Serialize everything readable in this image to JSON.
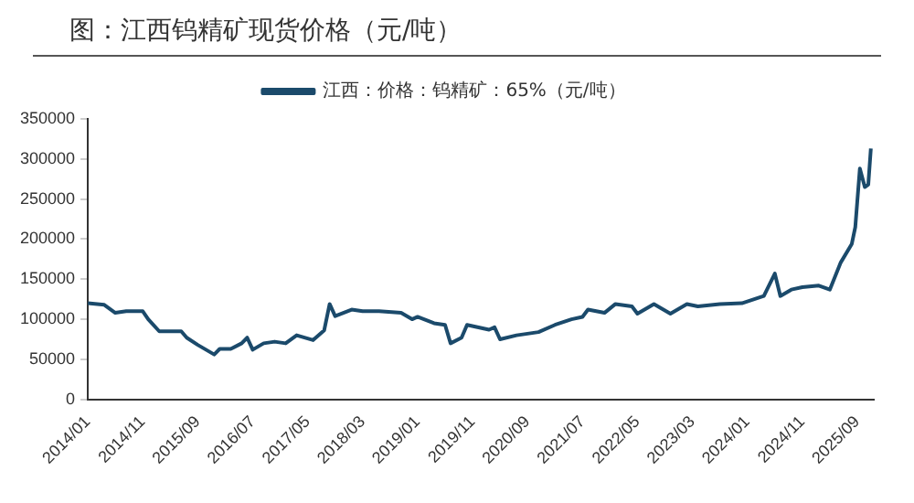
{
  "chart_data": {
    "type": "line",
    "title": "图：江西钨精矿现货价格（元/吨）",
    "x": [
      "2014-01",
      "2014-04",
      "2014-06",
      "2014-08",
      "2014-11",
      "2014-12",
      "2015-02",
      "2015-06",
      "2015-07",
      "2015-09",
      "2015-12",
      "2016-01",
      "2016-03",
      "2016-05",
      "2016-06",
      "2016-07",
      "2016-09",
      "2016-11",
      "2017-01",
      "2017-03",
      "2017-06",
      "2017-08",
      "2017-09",
      "2017-10",
      "2018-01",
      "2018-03",
      "2018-06",
      "2018-10",
      "2018-12",
      "2019-01",
      "2019-04",
      "2019-06",
      "2019-07",
      "2019-09",
      "2019-10",
      "2020-02",
      "2020-03",
      "2020-04",
      "2020-07",
      "2020-11",
      "2021-02",
      "2021-05",
      "2021-07",
      "2021-08",
      "2021-11",
      "2022-01",
      "2022-04",
      "2022-05",
      "2022-08",
      "2022-11",
      "2023-02",
      "2023-04",
      "2023-08",
      "2023-12",
      "2024-04",
      "2024-06",
      "2024-07",
      "2024-09",
      "2024-11",
      "2025-02",
      "2025-04",
      "2025-06",
      "2025-08",
      "2025-08-20",
      "2025-09-15",
      "2025-10-12",
      "2025-11-01",
      "2025-11-15"
    ],
    "series": [
      {
        "name": "江西：价格：钨精矿：65%（元/吨）",
        "color": "#1b4a6b",
        "values": [
          120000,
          118000,
          108000,
          110000,
          110000,
          100000,
          85000,
          85000,
          77000,
          68000,
          56000,
          63000,
          63000,
          70000,
          77000,
          62000,
          70000,
          72000,
          70000,
          80000,
          74000,
          86000,
          119000,
          104000,
          112000,
          110000,
          110000,
          108000,
          100000,
          103000,
          95000,
          93000,
          70000,
          77000,
          93000,
          87000,
          90000,
          75000,
          80000,
          84000,
          93000,
          100000,
          103000,
          112000,
          108000,
          119000,
          116000,
          107000,
          119000,
          107000,
          119000,
          116000,
          119000,
          120000,
          129000,
          157000,
          129000,
          137000,
          140000,
          142000,
          137000,
          171000,
          194000,
          215000,
          288000,
          265000,
          268000,
          313000
        ]
      }
    ],
    "xlim": [
      "2014-01",
      "2025-12"
    ],
    "xticks": [
      {
        "value": "2014-01",
        "label": "2014/01"
      },
      {
        "value": "2014-11",
        "label": "2014/11"
      },
      {
        "value": "2015-09",
        "label": "2015/09"
      },
      {
        "value": "2016-07",
        "label": "2016/07"
      },
      {
        "value": "2017-05",
        "label": "2017/05"
      },
      {
        "value": "2018-03",
        "label": "2018/03"
      },
      {
        "value": "2019-01",
        "label": "2019/01"
      },
      {
        "value": "2019-11",
        "label": "2019/11"
      },
      {
        "value": "2020-09",
        "label": "2020/09"
      },
      {
        "value": "2021-07",
        "label": "2021/07"
      },
      {
        "value": "2022-05",
        "label": "2022/05"
      },
      {
        "value": "2023-03",
        "label": "2023/03"
      },
      {
        "value": "2024-01",
        "label": "2024/01"
      },
      {
        "value": "2024-11",
        "label": "2024/11"
      },
      {
        "value": "2025-09",
        "label": "2025/09"
      }
    ],
    "ylim": [
      0,
      350000
    ],
    "yticks": [
      0,
      50000,
      100000,
      150000,
      200000,
      250000,
      300000,
      350000
    ],
    "grid": false,
    "legend": "top",
    "marker": "none",
    "line_style": "solid"
  }
}
